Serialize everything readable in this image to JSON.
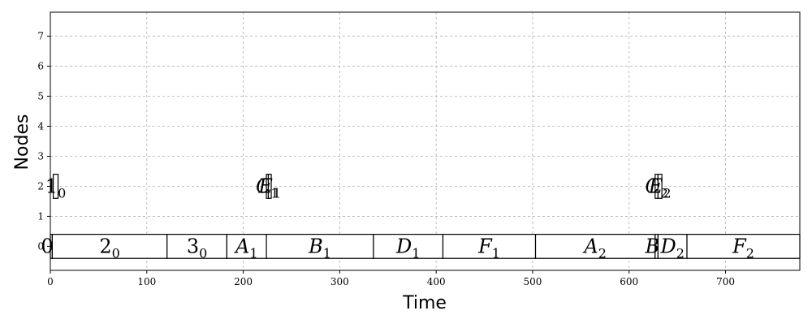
{
  "chart_data": {
    "type": "gantt",
    "title": "",
    "xlabel": "Time",
    "ylabel": "Nodes",
    "xlim": [
      0,
      777
    ],
    "ylim": [
      -0.8,
      7.8
    ],
    "xticks": [
      0,
      100,
      200,
      300,
      400,
      500,
      600,
      700
    ],
    "yticks": [
      0,
      1,
      2,
      3,
      4,
      5,
      6,
      7
    ],
    "grid": true,
    "tasks": [
      {
        "label": "0",
        "sub": "0",
        "node": 0,
        "start": 0,
        "end": 2
      },
      {
        "label": "1",
        "sub": "0",
        "node": 2,
        "start": 3,
        "end": 8
      },
      {
        "label": "2",
        "sub": "0",
        "node": 0,
        "start": 2,
        "end": 121
      },
      {
        "label": "3",
        "sub": "0",
        "node": 0,
        "start": 121,
        "end": 183
      },
      {
        "label": "A",
        "sub": "1",
        "node": 0,
        "start": 183,
        "end": 224
      },
      {
        "label": "C",
        "sub": "1",
        "node": 2,
        "start": 224,
        "end": 226
      },
      {
        "label": "E",
        "sub": "1",
        "node": 2,
        "start": 226,
        "end": 229
      },
      {
        "label": "B",
        "sub": "1",
        "node": 0,
        "start": 224,
        "end": 335
      },
      {
        "label": "D",
        "sub": "1",
        "node": 0,
        "start": 335,
        "end": 407
      },
      {
        "label": "F",
        "sub": "1",
        "node": 0,
        "start": 407,
        "end": 503
      },
      {
        "label": "A",
        "sub": "2",
        "node": 0,
        "start": 503,
        "end": 627
      },
      {
        "label": "C",
        "sub": "2",
        "node": 2,
        "start": 627,
        "end": 630
      },
      {
        "label": "E",
        "sub": "2",
        "node": 2,
        "start": 630,
        "end": 634
      },
      {
        "label": "B",
        "sub": "2",
        "node": 0,
        "start": 627,
        "end": 630
      },
      {
        "label": "D",
        "sub": "2",
        "node": 0,
        "start": 630,
        "end": 660
      },
      {
        "label": "F",
        "sub": "2",
        "node": 0,
        "start": 660,
        "end": 777
      }
    ]
  }
}
